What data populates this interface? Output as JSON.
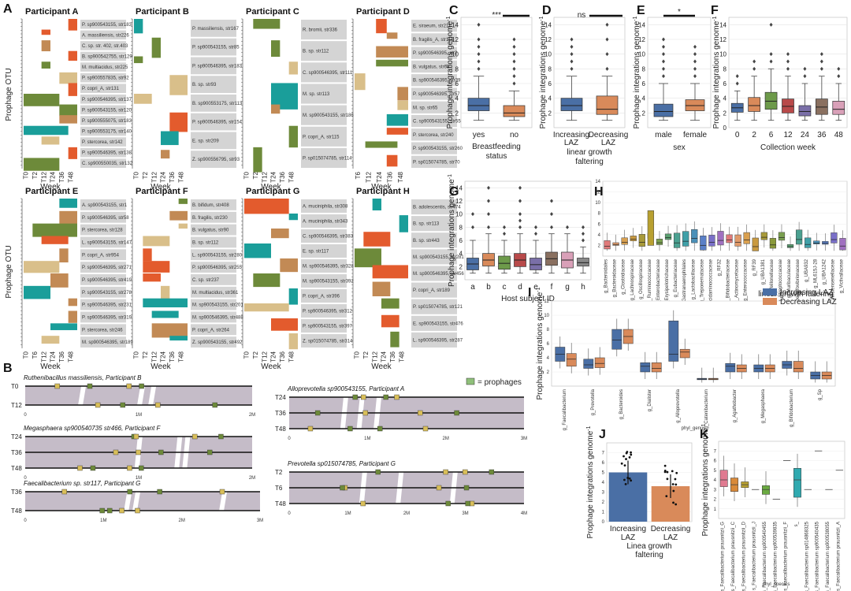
{
  "panel_letters": {
    "A": "A",
    "B": "B",
    "C": "C",
    "D": "D",
    "E": "E",
    "F": "F",
    "G": "G",
    "H": "H",
    "I": "I",
    "J": "J",
    "K": "K"
  },
  "colors": {
    "teal": "#1a9e9a",
    "tan": "#d9bf8a",
    "orange": "#e35b2d",
    "olive": "#6d8a3a",
    "brown": "#c28a55",
    "gray_label": "#d4d4d4",
    "blue": "#4a6fa5",
    "salmon": "#d98a5a",
    "synteny": "#c5bcc8"
  },
  "panel_a": {
    "y_label": "Prophage OTU",
    "x_label": "Week",
    "participants": [
      {
        "title": "Participant A",
        "weeks": [
          "T0",
          "T2",
          "T12",
          "T24",
          "T36",
          "T48"
        ],
        "labels": [
          "P. sp900543155, str183",
          "A. massiliensis, str226",
          "C. sp. str. 402, str.403",
          "B. sp900542755, str129",
          "M. multiacidus, str225",
          "P. sp900557835, str92",
          "P. copri_A, str131",
          "P. sp900546395, str137",
          "P. sp900543155, str120",
          "P. sp900555075, str183",
          "P. sp900553175, str140",
          "P. stercorea, str142",
          "P. sp900546395, str138",
          "C. sp900550035, str132"
        ]
      },
      {
        "title": "Participant B",
        "weeks": [
          "T0",
          "T2",
          "T12",
          "T24",
          "T36",
          "T48"
        ],
        "labels": [
          "P. massiliensis, str167",
          "P. sp900543155, str85",
          "P. sp900546395, str183",
          "B. sp. str93",
          "B. sp900553175, str113",
          "P. sp900546395, str154",
          "E. sp. str209",
          "Z. sp900556795, str93"
        ]
      },
      {
        "title": "Participant C",
        "weeks": [
          "T0",
          "T2",
          "T12",
          "T24",
          "T36",
          "T48"
        ],
        "labels": [
          "R. bromii, str336",
          "B. sp. str112",
          "C. sp900546395, str111",
          "M. sp. str113",
          "M. sp900543155, str186",
          "P. copri_A, str115",
          "P. sp015074785, str114"
        ]
      },
      {
        "title": "Participant D",
        "weeks": [
          "T6",
          "T12",
          "T24",
          "T36",
          "T48"
        ],
        "labels": [
          "E. siraeum, str211",
          "B. fragilis_A, str115",
          "P. sp900546395, str2",
          "B. vulgatus, str68",
          "B. sp900546395, str39",
          "P. sp900546395, str57",
          "M. sp. str65",
          "C. sp900543155, str55",
          "P. stercorea, str240",
          "P. sp900543155, str260",
          "P. sp015074785, str70"
        ]
      },
      {
        "title": "Participant E",
        "weeks": [
          "T0",
          "T6",
          "T12",
          "T24",
          "T36",
          "T48"
        ],
        "labels": [
          "A. sp900543155, str1",
          "P. sp900546395, str58",
          "P. stercorea, str128",
          "L. sp900543155, str147",
          "P. copri_A, str954",
          "P. sp900546395, str271",
          "P. sp900546395, str419",
          "P. sp900543155, str278",
          "P. sp900546395, str231",
          "P. sp900546395, str319",
          "P. stercorea, str246",
          "M. sp900546395, str189"
        ]
      },
      {
        "title": "Participant F",
        "weeks": [
          "T0",
          "T2",
          "T12",
          "T24",
          "T36",
          "T48"
        ],
        "labels": [
          "B. bifidum, str408",
          "B. fragilis, str230",
          "B. vulgatus, str90",
          "B. sp. str112",
          "L. sp900543155, str280",
          "P. sp900546395, str255",
          "C. sp. str237",
          "M. multiacidus, str361",
          "M. sp900543155, str201",
          "M. sp900546395, str488",
          "P. copri_A, str264",
          "Z. sp900543155, str492"
        ]
      },
      {
        "title": "Participant G",
        "weeks": [
          "T0",
          "T2",
          "T12",
          "T24",
          "T36",
          "T48"
        ],
        "labels": [
          "A. muciniphila, str308",
          "A. muciniphila, str343",
          "C. sp900546395, str383",
          "E. sp. str117",
          "M. sp900546395, str328",
          "M. sp900543155, str392",
          "P. copri_A, str396",
          "P. sp900546395, str312",
          "P. sp900543155, str397",
          "Z. sp015074785, str314"
        ]
      },
      {
        "title": "Participant H",
        "weeks": [
          "T0",
          "T2",
          "T12",
          "T24",
          "T36",
          "T48"
        ],
        "labels": [
          "B. adolescentis, str474",
          "B. sp. str113",
          "B. sp. str443",
          "M. sp900543155, str281",
          "M. sp900546395, str456",
          "P. copri_A, str189",
          "P. sp015074785, str121",
          "E. sp900543155, str476",
          "L. sp900546395, str287"
        ]
      }
    ]
  },
  "panel_b": {
    "legend": "= prophages",
    "tracks": [
      {
        "title": "Ruthenibacillus massiliensis, Participant B",
        "rows": [
          "T0",
          "T12"
        ],
        "ticks": [
          "0",
          "1M",
          "2M"
        ]
      },
      {
        "title": "Megasphaera sp900540735 str466, Participant F",
        "rows": [
          "T24",
          "T36",
          "T48"
        ],
        "ticks": [
          "0",
          "1M",
          "2M"
        ]
      },
      {
        "title": "Faecalibacterium sp. str117, Participant G",
        "rows": [
          "T36",
          "T48"
        ],
        "ticks": [
          "0",
          "1M",
          "2M",
          "3M"
        ]
      },
      {
        "title": "Alloprevotella sp900543155, Participant A",
        "rows": [
          "T24",
          "T36",
          "T48"
        ],
        "ticks": [
          "0",
          "1M",
          "2M",
          "3M"
        ]
      },
      {
        "title": "Prevotella sp015074785, Participant G",
        "rows": [
          "T2",
          "T6",
          "T48"
        ],
        "ticks": [
          "0",
          "1M",
          "2M",
          "3M",
          "4M"
        ]
      }
    ]
  },
  "chart_data": [
    {
      "id": "C",
      "type": "box",
      "ylabel": "Prophage integrations genome⁻¹",
      "xlabel": "Breastfeeding status",
      "categories": [
        "yes",
        "no"
      ],
      "ylim": [
        0,
        15
      ],
      "yticks": [
        2,
        4,
        6,
        8,
        10,
        12,
        14
      ],
      "boxes": [
        {
          "q1": 2.3,
          "median": 3.0,
          "q3": 4.0,
          "lo": 1,
          "hi": 7,
          "out": [
            8,
            9,
            10,
            11,
            12,
            14
          ],
          "color": "#4a6fa5"
        },
        {
          "q1": 1.5,
          "median": 2.0,
          "q3": 3.0,
          "lo": 1,
          "hi": 5,
          "out": [
            6,
            7,
            8,
            9,
            10,
            11,
            12
          ],
          "color": "#d98a5a"
        }
      ],
      "significance": "***"
    },
    {
      "id": "D",
      "type": "box",
      "ylabel": "Prophage integrations genome⁻¹",
      "xlabel": "linear growth faltering",
      "categories": [
        "Increasing LAZ",
        "Decreasing LAZ"
      ],
      "ylim": [
        0,
        15
      ],
      "yticks": [
        2,
        4,
        6,
        8,
        10,
        12,
        14
      ],
      "boxes": [
        {
          "q1": 2.3,
          "median": 3.0,
          "q3": 4.0,
          "lo": 1,
          "hi": 7,
          "out": [
            8,
            9,
            10,
            11,
            12
          ],
          "color": "#4a6fa5"
        },
        {
          "q1": 1.8,
          "median": 2.5,
          "q3": 4.3,
          "lo": 1,
          "hi": 7,
          "out": [
            8,
            10,
            12,
            14
          ],
          "color": "#d98a5a"
        }
      ],
      "significance": "ns"
    },
    {
      "id": "E",
      "type": "box",
      "ylabel": "Prophage integrations genome⁻¹",
      "xlabel": "sex",
      "categories": [
        "male",
        "female"
      ],
      "ylim": [
        0,
        15
      ],
      "yticks": [
        2,
        4,
        6,
        8,
        10,
        12,
        14
      ],
      "boxes": [
        {
          "q1": 1.5,
          "median": 2.2,
          "q3": 3.2,
          "lo": 1,
          "hi": 6,
          "out": [
            7,
            8,
            9,
            10,
            11,
            12
          ],
          "color": "#4a6fa5"
        },
        {
          "q1": 2.3,
          "median": 3.0,
          "q3": 3.8,
          "lo": 1,
          "hi": 6,
          "out": [
            7,
            8,
            9,
            10,
            11
          ],
          "color": "#d98a5a"
        }
      ],
      "significance": "*"
    },
    {
      "id": "F",
      "type": "box",
      "ylabel": "Prophage integrations genome⁻¹",
      "xlabel": "Collection week",
      "categories": [
        "0",
        "2",
        "6",
        "12",
        "24",
        "36",
        "48"
      ],
      "ylim": [
        0,
        15
      ],
      "yticks": [
        0,
        2,
        4,
        6,
        8,
        10,
        12,
        14
      ],
      "boxes": [
        {
          "q1": 2.1,
          "median": 2.7,
          "q3": 3.3,
          "lo": 1,
          "hi": 5,
          "out": [
            6,
            7
          ],
          "color": "#4a6fa5"
        },
        {
          "q1": 2.2,
          "median": 3.0,
          "q3": 4.1,
          "lo": 1,
          "hi": 7,
          "out": [
            8,
            9
          ],
          "color": "#d98a5a"
        },
        {
          "q1": 2.5,
          "median": 3.6,
          "q3": 4.8,
          "lo": 1,
          "hi": 8,
          "out": [
            9,
            10,
            14
          ],
          "color": "#6d9a4a"
        },
        {
          "q1": 2.0,
          "median": 2.9,
          "q3": 3.9,
          "lo": 1,
          "hi": 7,
          "out": [
            8,
            9,
            10
          ],
          "color": "#b84a4a"
        },
        {
          "q1": 1.6,
          "median": 2.2,
          "q3": 3.0,
          "lo": 1,
          "hi": 6,
          "out": [
            7,
            8
          ],
          "color": "#7a6fa8"
        },
        {
          "q1": 1.8,
          "median": 2.8,
          "q3": 3.9,
          "lo": 1,
          "hi": 7,
          "out": [
            8,
            9,
            10
          ],
          "color": "#8a7060"
        },
        {
          "q1": 1.8,
          "median": 2.5,
          "q3": 3.6,
          "lo": 1,
          "hi": 6,
          "out": [
            7,
            8
          ],
          "color": "#d9a0b8"
        }
      ]
    },
    {
      "id": "G",
      "type": "box",
      "ylabel": "Prophage integrations genome⁻¹",
      "xlabel": "Host subject ID",
      "categories": [
        "a",
        "b",
        "c",
        "d",
        "e",
        "f",
        "g",
        "h"
      ],
      "ylim": [
        0,
        15
      ],
      "yticks": [
        2,
        4,
        6,
        8,
        10,
        12,
        14
      ],
      "boxes": [
        {
          "q1": 1.5,
          "median": 2.4,
          "q3": 3.3,
          "lo": 1,
          "hi": 6,
          "out": [
            8,
            10
          ],
          "color": "#4a6fa5"
        },
        {
          "q1": 2.1,
          "median": 3.0,
          "q3": 4.0,
          "lo": 1,
          "hi": 7,
          "out": [
            8,
            10,
            12,
            14
          ],
          "color": "#d98a5a"
        },
        {
          "q1": 1.6,
          "median": 2.5,
          "q3": 3.6,
          "lo": 1,
          "hi": 6,
          "out": [
            7,
            8
          ],
          "color": "#6d9a4a"
        },
        {
          "q1": 2.0,
          "median": 3.0,
          "q3": 4.0,
          "lo": 1,
          "hi": 7,
          "out": [
            8,
            9,
            10,
            12,
            14
          ],
          "color": "#b84a4a"
        },
        {
          "q1": 1.5,
          "median": 2.3,
          "q3": 3.3,
          "lo": 1,
          "hi": 6,
          "out": [
            7,
            8
          ],
          "color": "#7a6fa8"
        },
        {
          "q1": 2.2,
          "median": 3.2,
          "q3": 4.2,
          "lo": 1,
          "hi": 7,
          "out": [
            8,
            10,
            12
          ],
          "color": "#8a7060"
        },
        {
          "q1": 1.8,
          "median": 3.0,
          "q3": 4.2,
          "lo": 1,
          "hi": 7,
          "out": [
            8
          ],
          "color": "#d9a0b8"
        },
        {
          "q1": 2.1,
          "median": 2.6,
          "q3": 3.3,
          "lo": 1,
          "hi": 5,
          "out": [
            6,
            7,
            8
          ],
          "color": "#888888"
        }
      ]
    },
    {
      "id": "H",
      "type": "box",
      "xlabel": "linear growth faltering",
      "categories": [
        "g_Bacteroidales",
        "g_Bacteroidaceae",
        "g_Clostridiaceae",
        "g_Lachnospiraceae",
        "g_Oscillospiraceae",
        "g_Ruminococcaceae",
        "g_Enterobacteriaceae",
        "g_Erysipelotrichaceae",
        "g_Eubacteriaceae",
        "g_Gastranaerophilales",
        "g_Lactobacillaceae",
        "g_Treponemataceae",
        "g_Acidaminococcaceae",
        "g_RF32",
        "g_Bifidobacteriaceae",
        "g_Actinomycetaceae",
        "g_Enterococcaceae",
        "g_RF39",
        "g_UBA1381",
        "g_Veillonellaceae",
        "g_Streptococcaceae",
        "g_Muribaculaceae",
        "g_Desulfovibrionaceae",
        "g_UBA932",
        "g_ML615J-28",
        "g_UBA1242",
        "g_Christensenellaceae",
        "g_Victivallaceae"
      ],
      "ylim": [
        0,
        14
      ],
      "yticks": [
        2,
        4,
        6,
        8,
        10,
        12,
        14
      ]
    },
    {
      "id": "I",
      "type": "box",
      "ylabel": "Prophage integrations genome⁻¹",
      "xlabel": "phyl_genus",
      "legend": [
        "Increasing LAZ",
        "Decreasing LAZ"
      ],
      "categories": [
        "g_Faecalibacterium",
        "g_Prevotella",
        "g_Bacteroides",
        "g_Dialister",
        "g_Alloprevotella",
        "g_Catenibacterium",
        "g_Agathobacter",
        "g_Megasphaera",
        "g_Bifidobacterium",
        "g_Sp"
      ],
      "ylim": [
        0,
        12
      ],
      "yticks": [
        2,
        4,
        6,
        8,
        10,
        12
      ]
    },
    {
      "id": "J",
      "type": "bar",
      "ylabel": "Prophage integrations genome⁻¹",
      "xlabel": "Linea growth faltering",
      "categories": [
        "Increasing LAZ",
        "Decreasing LAZ"
      ],
      "values": [
        5.0,
        3.6
      ],
      "colors": [
        "#4a6fa5",
        "#d98a5a"
      ],
      "ylim": [
        0,
        8
      ],
      "yticks": [
        0,
        1,
        2,
        3,
        4,
        5,
        6,
        7
      ]
    },
    {
      "id": "K",
      "type": "box",
      "ylabel": "Prophage integrations genome⁻¹",
      "xlabel": "phyl_species",
      "categories": [
        "s_Faecalibacterium prausnitzii_G",
        "s_Faecalibacterium prausnitzii_C",
        "s_Faecalibacterium prausnitzii_D",
        "s_Faecalibacterium prausnitzii_J",
        "s_Faecalibacterium sp900540455",
        "s_Faecalibacterium sp900539835",
        "s_Faecalibacterium prausnitzii_F",
        "s_",
        "s_Faecalibacterium sp014868325",
        "s_Faecalibacterium sp900540435",
        "s_Faecalibacterium sp900538055",
        "s_Faecalibacterium prausnitzii_A"
      ],
      "ylim": [
        0,
        8
      ],
      "yticks": [
        1,
        2,
        3,
        4,
        5,
        6,
        7
      ]
    }
  ],
  "labels": {
    "prophage_y": "Prophage integrations genome",
    "sup": "-1",
    "yes": "yes",
    "no": "no",
    "inc": "Increasing",
    "dec": "Decreasing",
    "laz": "LAZ",
    "male": "male",
    "female": "female",
    "c_x": "Breastfeeding",
    "c_x2": "status",
    "d_x": "linear growth",
    "d_x2": "faltering",
    "e_x": "sex",
    "f_x": "Collection week",
    "g_x": "Host subject ID",
    "h_x": "linear growth faltering",
    "i_leg1": "Increasing LAZ",
    "i_leg2": "Decreasing LAZ",
    "i_x": "phyl_genus",
    "j_x": "Linea growth",
    "j_x2": "faltering",
    "k_x": "phyl_species",
    "sig_c": "***",
    "sig_d": "ns",
    "sig_e": "*"
  }
}
